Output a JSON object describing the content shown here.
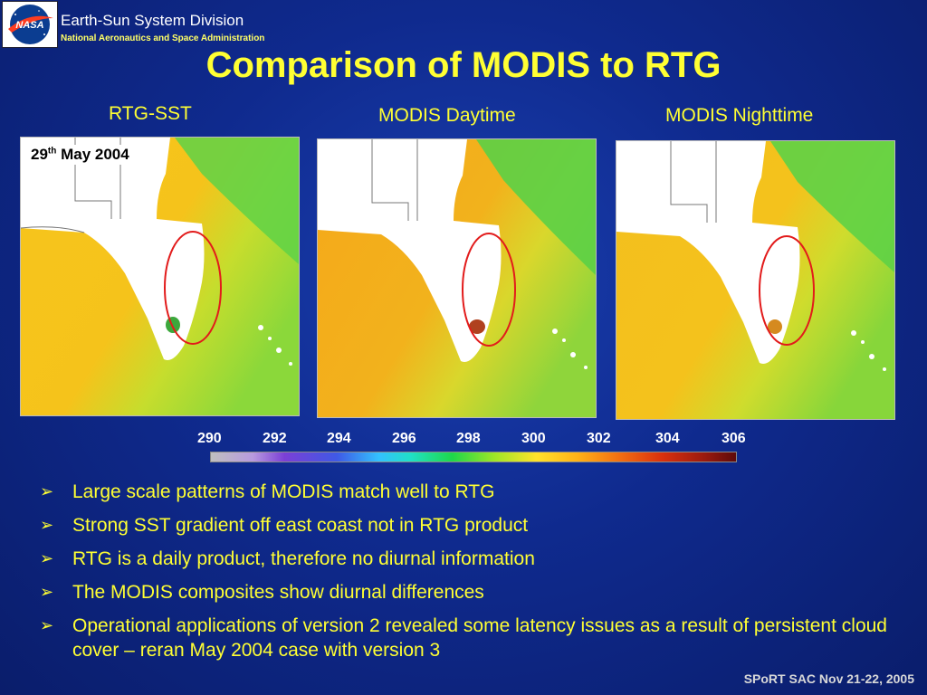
{
  "header": {
    "logo_text": "NASA",
    "division": "Earth-Sun System Division",
    "agency": "National Aeronautics and Space Administration"
  },
  "title": "Comparison of MODIS to RTG",
  "panels": [
    {
      "label": "RTG-SST"
    },
    {
      "label": "MODIS Daytime"
    },
    {
      "label": "MODIS Nighttime"
    }
  ],
  "date_label": {
    "day": "29",
    "suffix": "th",
    "rest": "May 2004"
  },
  "colorbar": {
    "ticks": [
      "290",
      "292",
      "294",
      "296",
      "298",
      "300",
      "302",
      "304",
      "306"
    ]
  },
  "bullets": [
    "Large scale patterns of MODIS match well to RTG",
    "Strong SST gradient off east coast not in RTG product",
    "RTG is a daily product, therefore no diurnal information",
    "The MODIS composites show diurnal differences",
    "Operational applications of version 2 revealed some latency issues as a result of persistent cloud cover – reran May 2004 case with version 3"
  ],
  "footer": "SPoRT SAC Nov 21-22, 2005"
}
